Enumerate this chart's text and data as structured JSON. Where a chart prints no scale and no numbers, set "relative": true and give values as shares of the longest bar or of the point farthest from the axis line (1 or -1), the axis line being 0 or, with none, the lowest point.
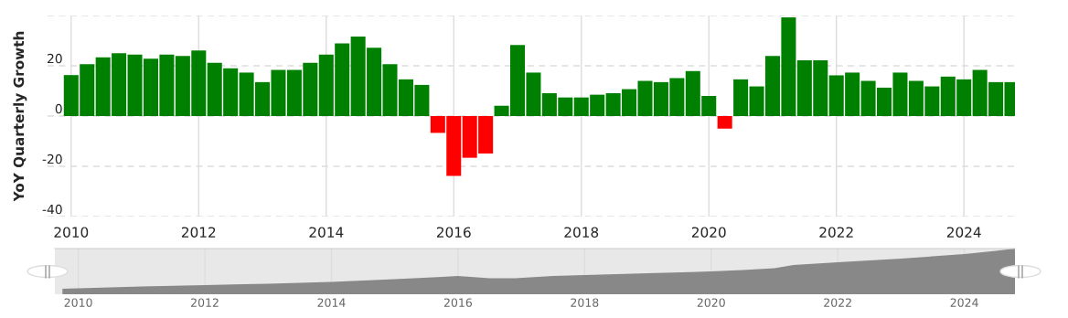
{
  "chart_data": [
    {
      "type": "bar",
      "ylabel": "YoY Quarterly Growth",
      "x": [
        2010.0,
        2010.25,
        2010.5,
        2010.75,
        2011.0,
        2011.25,
        2011.5,
        2011.75,
        2012.0,
        2012.25,
        2012.5,
        2012.75,
        2013.0,
        2013.25,
        2013.5,
        2013.75,
        2014.0,
        2014.25,
        2014.5,
        2014.75,
        2015.0,
        2015.25,
        2015.5,
        2015.75,
        2016.0,
        2016.25,
        2016.5,
        2016.75,
        2017.0,
        2017.25,
        2017.5,
        2017.75,
        2018.0,
        2018.25,
        2018.5,
        2018.75,
        2019.0,
        2019.25,
        2019.5,
        2019.75,
        2020.0,
        2020.25,
        2020.5,
        2020.75,
        2021.0,
        2021.25,
        2021.5,
        2021.75,
        2022.0,
        2022.25,
        2022.5,
        2022.75,
        2023.0,
        2023.25,
        2023.5,
        2023.75,
        2024.0,
        2024.25,
        2024.5,
        2024.75
      ],
      "values": [
        16.3,
        20.6,
        23.4,
        25.0,
        24.5,
        22.8,
        24.5,
        23.9,
        26.1,
        21.2,
        19.0,
        17.3,
        13.5,
        18.4,
        18.4,
        21.2,
        24.5,
        28.9,
        31.6,
        27.2,
        20.6,
        14.6,
        12.4,
        -6.7,
        -23.8,
        -16.6,
        -14.9,
        4.1,
        28.3,
        17.3,
        9.1,
        7.4,
        7.4,
        8.5,
        9.1,
        10.7,
        14.0,
        13.5,
        15.1,
        17.9,
        8.0,
        -5.0,
        14.6,
        11.8,
        23.9,
        39.3,
        22.2,
        22.2,
        16.2,
        17.3,
        14.0,
        11.3,
        17.3,
        14.0,
        11.8,
        15.7,
        14.6,
        18.4,
        13.5,
        13.5
      ],
      "colors": [
        "#008000",
        "#008000",
        "#008000",
        "#008000",
        "#008000",
        "#008000",
        "#008000",
        "#008000",
        "#008000",
        "#008000",
        "#008000",
        "#008000",
        "#008000",
        "#008000",
        "#008000",
        "#008000",
        "#008000",
        "#008000",
        "#008000",
        "#008000",
        "#008000",
        "#008000",
        "#008000",
        "#ff0000",
        "#ff0000",
        "#ff0000",
        "#ff0000",
        "#008000",
        "#008000",
        "#008000",
        "#008000",
        "#008000",
        "#008000",
        "#008000",
        "#008000",
        "#008000",
        "#008000",
        "#008000",
        "#008000",
        "#008000",
        "#008000",
        "#ff0000",
        "#008000",
        "#008000",
        "#008000",
        "#008000",
        "#008000",
        "#008000",
        "#008000",
        "#008000",
        "#008000",
        "#008000",
        "#008000",
        "#008000",
        "#008000",
        "#008000",
        "#008000",
        "#008000",
        "#008000",
        "#008000"
      ],
      "xlim": [
        2009.63,
        2024.8
      ],
      "xticks": [
        2010,
        2012,
        2014,
        2016,
        2018,
        2020,
        2022,
        2024
      ],
      "ylim": [
        -40,
        40
      ],
      "yticks": [
        -40,
        -20,
        0,
        20,
        {
          "value": 40,
          "label": null
        }
      ],
      "grid": true,
      "legend": false
    },
    {
      "type": "area",
      "relative": true,
      "color": "#888888",
      "x": [
        2009.75,
        2010.0,
        2011.0,
        2012.0,
        2013.0,
        2014.0,
        2015.0,
        2015.75,
        2016.0,
        2016.5,
        2016.9,
        2017.5,
        2018.0,
        2019.0,
        2020.0,
        2020.5,
        2021.0,
        2021.3,
        2022.0,
        2023.0,
        2024.0,
        2024.5,
        2024.8
      ],
      "values": [
        0.12,
        0.13,
        0.17,
        0.2,
        0.23,
        0.27,
        0.33,
        0.38,
        0.4,
        0.35,
        0.35,
        0.4,
        0.42,
        0.46,
        0.5,
        0.53,
        0.57,
        0.64,
        0.7,
        0.78,
        0.88,
        0.95,
        1.0
      ],
      "xlim": [
        2009.63,
        2024.8
      ],
      "xticks": [
        2010,
        2012,
        2014,
        2016,
        2018,
        2020,
        2022,
        2024
      ],
      "tick_labels": "x",
      "grid": "x",
      "legend": false
    }
  ]
}
